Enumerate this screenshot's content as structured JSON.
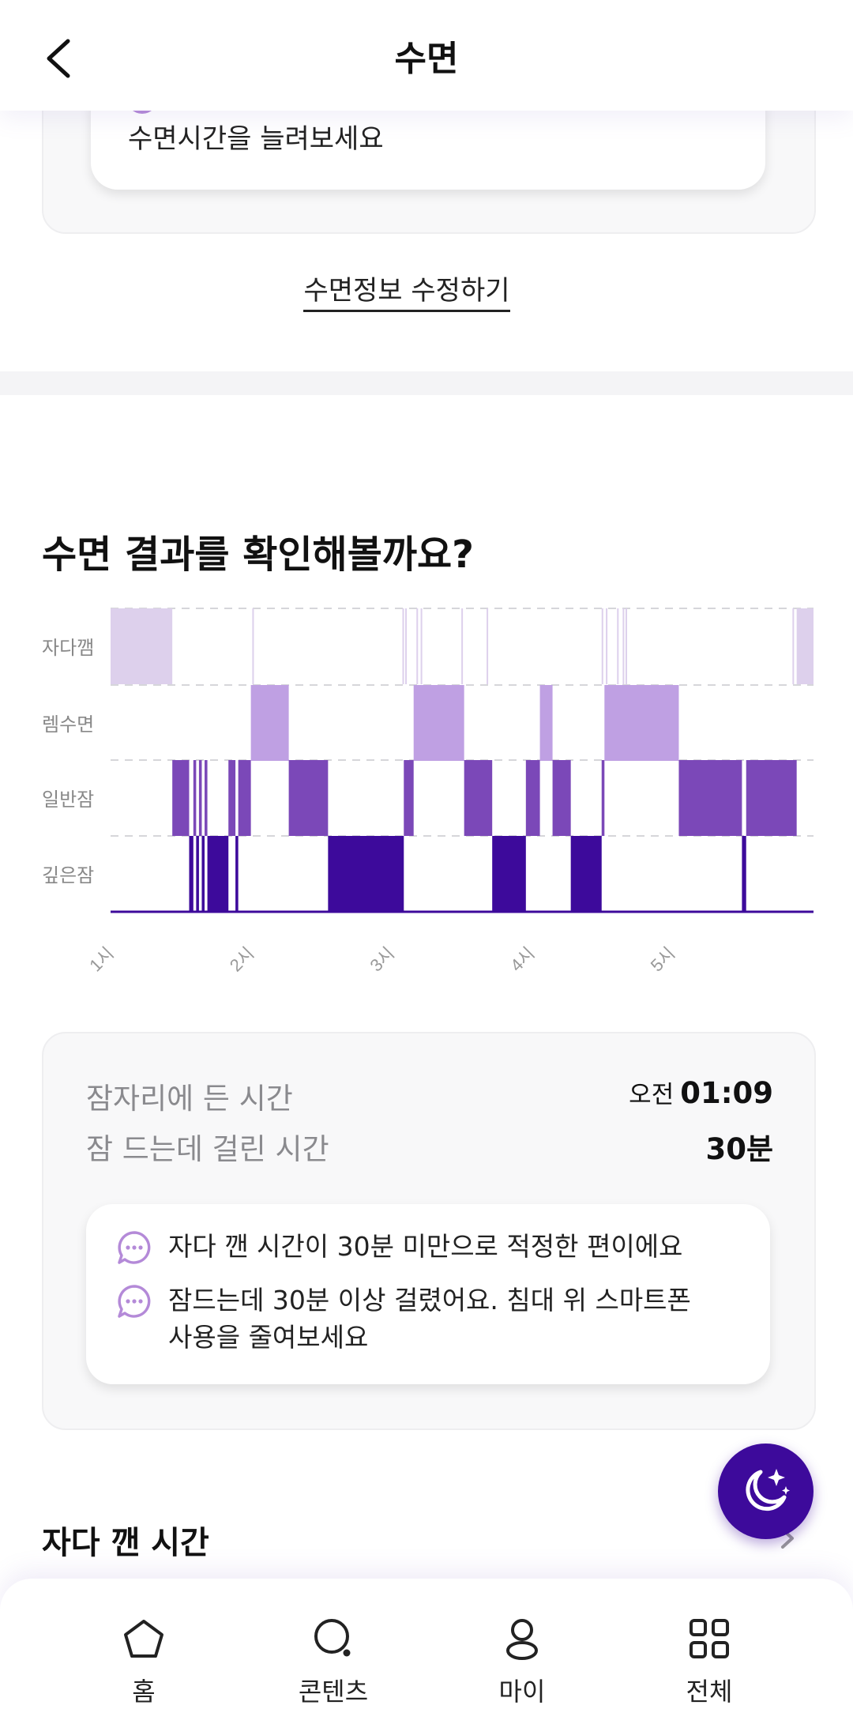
{
  "header": {
    "title": "수면"
  },
  "prev_card": {
    "text": "수면시간을 늘려보세요"
  },
  "edit_link": "수면정보 수정하기",
  "result": {
    "title": "수면 결과를 확인해볼까요?",
    "chart_data": {
      "type": "heatmap",
      "title": "",
      "stages": [
        "자다깸",
        "렘수면",
        "일반잠",
        "깊은잠"
      ],
      "x_ticks": [
        "1시",
        "2시",
        "3시",
        "4시",
        "5시"
      ],
      "x_tick_hours": [
        1.0,
        2.0,
        3.0,
        4.0,
        5.0
      ],
      "x_range_hours": [
        0.97,
        5.98
      ],
      "stage_colors": [
        "#ddd0ec",
        "#bfa0e3",
        "#7b48b8",
        "#3d0a9b"
      ],
      "segments": [
        {
          "stage": "자다깸",
          "start": 0.97,
          "end": 1.41
        },
        {
          "stage": "일반잠",
          "start": 1.41,
          "end": 1.53
        },
        {
          "stage": "깊은잠",
          "start": 1.53,
          "end": 1.56
        },
        {
          "stage": "일반잠",
          "start": 1.56,
          "end": 1.58
        },
        {
          "stage": "깊은잠",
          "start": 1.58,
          "end": 1.6
        },
        {
          "stage": "일반잠",
          "start": 1.6,
          "end": 1.62
        },
        {
          "stage": "깊은잠",
          "start": 1.62,
          "end": 1.64
        },
        {
          "stage": "일반잠",
          "start": 1.64,
          "end": 1.66
        },
        {
          "stage": "깊은잠",
          "start": 1.66,
          "end": 1.81
        },
        {
          "stage": "일반잠",
          "start": 1.81,
          "end": 1.86
        },
        {
          "stage": "깊은잠",
          "start": 1.86,
          "end": 1.88
        },
        {
          "stage": "일반잠",
          "start": 1.88,
          "end": 1.97
        },
        {
          "stage": "렘수면",
          "start": 1.97,
          "end": 2.24
        },
        {
          "stage": "일반잠",
          "start": 2.24,
          "end": 2.52
        },
        {
          "stage": "깊은잠",
          "start": 2.52,
          "end": 3.06
        },
        {
          "stage": "일반잠",
          "start": 3.06,
          "end": 3.13
        },
        {
          "stage": "렘수면",
          "start": 3.13,
          "end": 3.49
        },
        {
          "stage": "일반잠",
          "start": 3.49,
          "end": 3.69
        },
        {
          "stage": "깊은잠",
          "start": 3.69,
          "end": 3.93
        },
        {
          "stage": "일반잠",
          "start": 3.93,
          "end": 4.03
        },
        {
          "stage": "렘수면",
          "start": 4.03,
          "end": 4.12
        },
        {
          "stage": "일반잠",
          "start": 4.12,
          "end": 4.25
        },
        {
          "stage": "깊은잠",
          "start": 4.25,
          "end": 4.47
        },
        {
          "stage": "일반잠",
          "start": 4.47,
          "end": 4.49
        },
        {
          "stage": "렘수면",
          "start": 4.49,
          "end": 5.02
        },
        {
          "stage": "일반잠",
          "start": 5.02,
          "end": 5.47
        },
        {
          "stage": "깊은잠",
          "start": 5.47,
          "end": 5.5
        },
        {
          "stage": "일반잠",
          "start": 5.5,
          "end": 5.86
        },
        {
          "stage": "자다깸",
          "start": 5.86,
          "end": 5.98
        }
      ],
      "awake_ticks": [
        1.98,
        3.05,
        3.07,
        3.15,
        3.18,
        3.47,
        3.65,
        4.47,
        4.5,
        4.58,
        4.62,
        4.64,
        5.83,
        5.88
      ]
    }
  },
  "summary": {
    "bed_label": "잠자리에 든 시간",
    "bed_ampm": "오전",
    "bed_time": "01:09",
    "latency_label": "잠 드는데 걸린 시간",
    "latency_value": "30분",
    "tip1": "자다 깬 시간이 30분 미만으로 적정한 편이에요",
    "tip2": "잠드는데 30분 이상 걸렸어요. 침대 위 스마트폰 사용을 줄여보세요"
  },
  "wake_section": {
    "title": "자다 깬 시간"
  },
  "nav": {
    "home": "홈",
    "contents": "콘텐츠",
    "my": "마이",
    "all": "전체",
    "icons": [
      "home-icon",
      "search-icon",
      "person-icon",
      "grid-icon"
    ]
  },
  "colors": {
    "brand": "#3d0a9b",
    "accent": "#b48ad8"
  }
}
